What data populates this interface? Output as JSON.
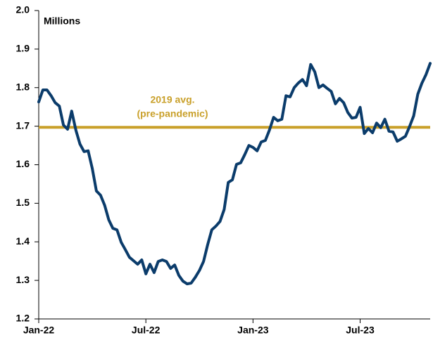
{
  "chart_data": {
    "type": "line",
    "y_label": "Millions",
    "categories": [
      "Jan-22",
      null,
      null,
      null,
      null,
      null,
      null,
      null,
      null,
      null,
      null,
      null,
      null,
      null,
      null,
      null,
      null,
      null,
      null,
      null,
      null,
      null,
      null,
      null,
      null,
      null,
      "Jul-22",
      null,
      null,
      null,
      null,
      null,
      null,
      null,
      null,
      null,
      null,
      null,
      null,
      null,
      null,
      null,
      null,
      null,
      null,
      null,
      null,
      null,
      null,
      null,
      null,
      null,
      "Jan-23",
      null,
      null,
      null,
      null,
      null,
      null,
      null,
      null,
      null,
      null,
      null,
      null,
      null,
      null,
      null,
      null,
      null,
      null,
      null,
      null,
      null,
      null,
      null,
      null,
      null,
      "Jul-23",
      null,
      null,
      null,
      null,
      null,
      null,
      null,
      null,
      null,
      null,
      null,
      null,
      null,
      null,
      null,
      null,
      null
    ],
    "series": [
      {
        "color": "#0b3c6b",
        "values": [
          1.763,
          1.794,
          1.794,
          1.779,
          1.761,
          1.752,
          1.703,
          1.692,
          1.739,
          1.69,
          1.654,
          1.634,
          1.636,
          1.59,
          1.532,
          1.521,
          1.495,
          1.457,
          1.435,
          1.431,
          1.399,
          1.38,
          1.36,
          1.351,
          1.342,
          1.353,
          1.317,
          1.342,
          1.32,
          1.349,
          1.353,
          1.349,
          1.331,
          1.34,
          1.313,
          1.298,
          1.291,
          1.293,
          1.308,
          1.326,
          1.349,
          1.393,
          1.431,
          1.441,
          1.453,
          1.484,
          1.554,
          1.561,
          1.601,
          1.605,
          1.626,
          1.65,
          1.645,
          1.636,
          1.659,
          1.663,
          1.69,
          1.723,
          1.714,
          1.718,
          1.779,
          1.776,
          1.8,
          1.812,
          1.821,
          1.805,
          1.86,
          1.841,
          1.8,
          1.807,
          1.798,
          1.79,
          1.758,
          1.772,
          1.761,
          1.736,
          1.721,
          1.723,
          1.749,
          1.681,
          1.694,
          1.683,
          1.708,
          1.696,
          1.718,
          1.687,
          1.685,
          1.661,
          1.667,
          1.674,
          1.699,
          1.727,
          1.783,
          1.812,
          1.834,
          1.863
        ]
      }
    ],
    "reference_line": {
      "value": 1.697,
      "color": "#c9a02a",
      "label": [
        "2019 avg.",
        "(pre-pandemic)"
      ]
    },
    "ylim": [
      1.2,
      2.0
    ],
    "yticks": [
      1.2,
      1.3,
      1.4,
      1.5,
      1.6,
      1.7,
      1.8,
      1.9,
      {
        "value": 2.0,
        "label": "2.0"
      }
    ],
    "grid": false
  }
}
